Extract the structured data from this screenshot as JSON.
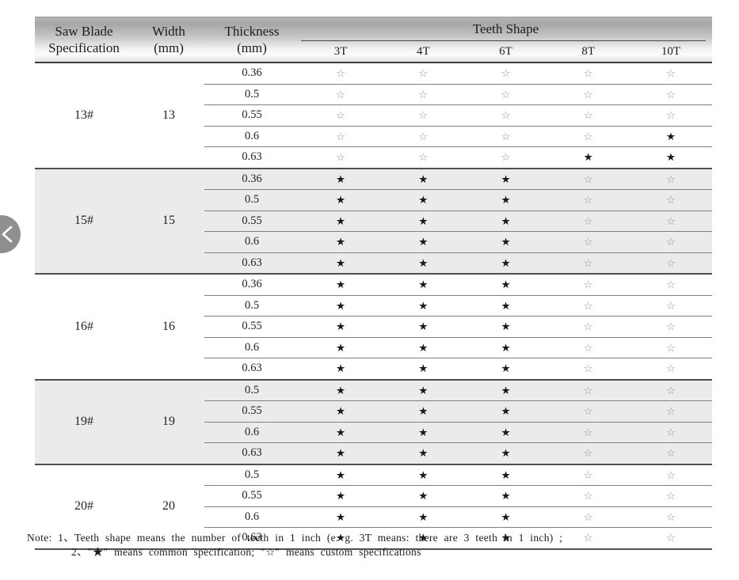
{
  "nav": {
    "prev_button": "previous"
  },
  "table": {
    "headers": {
      "spec_line1": "Saw Blade",
      "spec_line2": "Specification",
      "width_line1": "Width",
      "width_line2": "(mm)",
      "thickness_line1": "Thickness",
      "thickness_line2": "(mm)",
      "teeth_shape": "Teeth Shape",
      "teeth_cols": [
        "3T",
        "4T",
        "6T",
        "8T",
        "10T"
      ]
    },
    "legend": {
      "common_symbol": "★",
      "custom_symbol": "☆"
    },
    "groups": [
      {
        "spec": "13#",
        "width": "13",
        "rows": [
          {
            "thickness": "0.36",
            "teeth": [
              0,
              0,
              0,
              0,
              0
            ]
          },
          {
            "thickness": "0.5",
            "teeth": [
              0,
              0,
              0,
              0,
              0
            ]
          },
          {
            "thickness": "0.55",
            "teeth": [
              0,
              0,
              0,
              0,
              0
            ]
          },
          {
            "thickness": "0.6",
            "teeth": [
              0,
              0,
              0,
              0,
              1
            ]
          },
          {
            "thickness": "0.63",
            "teeth": [
              0,
              0,
              0,
              1,
              1
            ]
          }
        ]
      },
      {
        "spec": "15#",
        "width": "15",
        "rows": [
          {
            "thickness": "0.36",
            "teeth": [
              1,
              1,
              1,
              0,
              0
            ]
          },
          {
            "thickness": "0.5",
            "teeth": [
              1,
              1,
              1,
              0,
              0
            ]
          },
          {
            "thickness": "0.55",
            "teeth": [
              1,
              1,
              1,
              0,
              0
            ]
          },
          {
            "thickness": "0.6",
            "teeth": [
              1,
              1,
              1,
              0,
              0
            ]
          },
          {
            "thickness": "0.63",
            "teeth": [
              1,
              1,
              1,
              0,
              0
            ]
          }
        ]
      },
      {
        "spec": "16#",
        "width": "16",
        "rows": [
          {
            "thickness": "0.36",
            "teeth": [
              1,
              1,
              1,
              0,
              0
            ]
          },
          {
            "thickness": "0.5",
            "teeth": [
              1,
              1,
              1,
              0,
              0
            ]
          },
          {
            "thickness": "0.55",
            "teeth": [
              1,
              1,
              1,
              0,
              0
            ]
          },
          {
            "thickness": "0.6",
            "teeth": [
              1,
              1,
              1,
              0,
              0
            ]
          },
          {
            "thickness": "0.63",
            "teeth": [
              1,
              1,
              1,
              0,
              0
            ]
          }
        ]
      },
      {
        "spec": "19#",
        "width": "19",
        "rows": [
          {
            "thickness": "0.5",
            "teeth": [
              1,
              1,
              1,
              0,
              0
            ]
          },
          {
            "thickness": "0.55",
            "teeth": [
              1,
              1,
              1,
              0,
              0
            ]
          },
          {
            "thickness": "0.6",
            "teeth": [
              1,
              1,
              1,
              0,
              0
            ]
          },
          {
            "thickness": "0.63",
            "teeth": [
              1,
              1,
              1,
              0,
              0
            ]
          }
        ]
      },
      {
        "spec": "20#",
        "width": "20",
        "rows": [
          {
            "thickness": "0.5",
            "teeth": [
              1,
              1,
              1,
              0,
              0
            ]
          },
          {
            "thickness": "0.55",
            "teeth": [
              1,
              1,
              1,
              0,
              0
            ]
          },
          {
            "thickness": "0.6",
            "teeth": [
              1,
              1,
              1,
              0,
              0
            ]
          },
          {
            "thickness": "0.63",
            "teeth": [
              1,
              1,
              1,
              0,
              0
            ]
          }
        ]
      }
    ]
  },
  "note": {
    "line1": "Note: 1、Teeth shape means the number of teeth in 1 inch (e. g.  3T  means: there are 3 teeth in 1 inch) ;",
    "line2": "2、″★″ means common specification;  ″☆″ means custom specifications"
  },
  "colors": {
    "group_shaded_bg": "#ebebeb",
    "star_filled": "#1a1a1a",
    "star_hollow": "#9a9a9a",
    "header_gradient_top": "#a7a7a7",
    "header_gradient_bottom": "#e2e2e2"
  }
}
